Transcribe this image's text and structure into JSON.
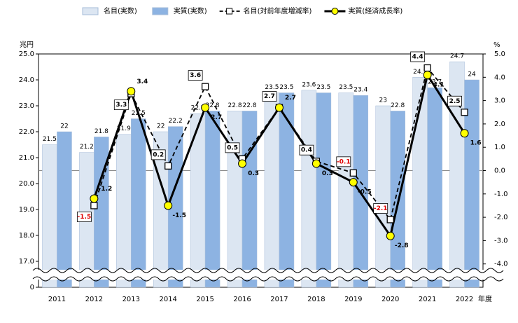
{
  "chart_data": {
    "type": "bar",
    "categories": [
      "2011",
      "2012",
      "2013",
      "2014",
      "2015",
      "2016",
      "2017",
      "2018",
      "2019",
      "2020",
      "2021",
      "2022"
    ],
    "xlabel": "年度",
    "ylabel": "兆円",
    "y2label": "%",
    "ylim": [
      0,
      25
    ],
    "ybreak": [
      0,
      16
    ],
    "yticks": [
      {
        "value": 0,
        "label": "0"
      },
      {
        "value": 17,
        "label": "17.0"
      },
      {
        "value": 18,
        "label": "18.0"
      },
      {
        "value": 19,
        "label": "19.0"
      },
      {
        "value": 20,
        "label": "20.0"
      },
      {
        "value": 21,
        "label": "21.0"
      },
      {
        "value": 22,
        "label": "22.0"
      },
      {
        "value": 23,
        "label": "23.0"
      },
      {
        "value": 24,
        "label": "24.0"
      },
      {
        "value": 25,
        "label": "25.0"
      }
    ],
    "y2lim": [
      -5,
      5
    ],
    "y2ticks": [
      {
        "value": 5,
        "label": "5.0"
      },
      {
        "value": 4,
        "label": "4.0"
      },
      {
        "value": 3,
        "label": "3.0"
      },
      {
        "value": 2,
        "label": "2.0"
      },
      {
        "value": 1,
        "label": "1.0"
      },
      {
        "value": 0,
        "label": "0.0"
      },
      {
        "value": -1,
        "label": "-1.0"
      },
      {
        "value": -2,
        "label": "-2.0"
      },
      {
        "value": -3,
        "label": "-3.0"
      },
      {
        "value": -4,
        "label": "-4.0"
      }
    ],
    "legend": "top",
    "series": [
      {
        "name": "名目(実数)",
        "type": "bar",
        "color": "#dce6f2",
        "values": [
          21.5,
          21.2,
          21.9,
          22.0,
          22.7,
          22.8,
          23.5,
          23.6,
          23.5,
          23.0,
          24.1,
          24.7
        ]
      },
      {
        "name": "実質(実数)",
        "type": "bar",
        "color": "#8db3e2",
        "values": [
          22.0,
          21.8,
          22.5,
          22.2,
          22.8,
          22.8,
          23.5,
          23.5,
          23.4,
          22.8,
          23.7,
          24.0
        ]
      },
      {
        "name": "名目(対前年度増減率)",
        "type": "line",
        "axis": "y2",
        "color": "#000000",
        "marker": "square",
        "dashed": true,
        "values": [
          null,
          -1.5,
          3.3,
          0.2,
          3.6,
          0.5,
          2.7,
          0.4,
          -0.1,
          -2.1,
          4.4,
          2.5
        ]
      },
      {
        "name": "実質(経済成長率)",
        "type": "line",
        "axis": "y2",
        "color": "#000000",
        "marker": "circle",
        "marker_color": "#ffff00",
        "values": [
          null,
          -1.2,
          3.4,
          -1.5,
          2.7,
          0.3,
          2.7,
          0.3,
          -0.5,
          -2.8,
          4.1,
          1.6
        ]
      }
    ]
  }
}
